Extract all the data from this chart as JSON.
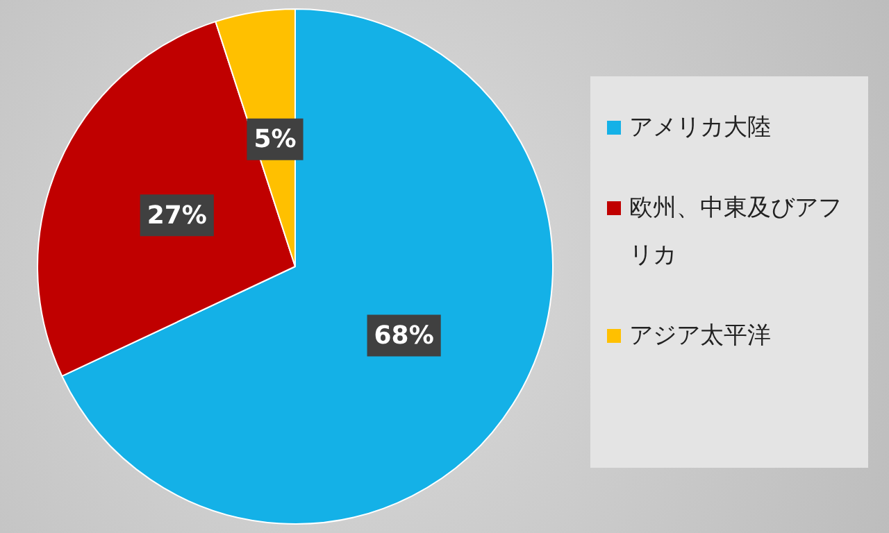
{
  "chart_data": {
    "type": "pie",
    "categories": [
      "アメリカ大陸",
      "欧州、中東及びアフリカ",
      "アジア太平洋"
    ],
    "values": [
      68,
      27,
      5
    ],
    "colors": [
      "#14b1e7",
      "#c00000",
      "#ffc000"
    ],
    "value_labels": [
      "68%",
      "27%",
      "5%"
    ],
    "legend": "right"
  }
}
